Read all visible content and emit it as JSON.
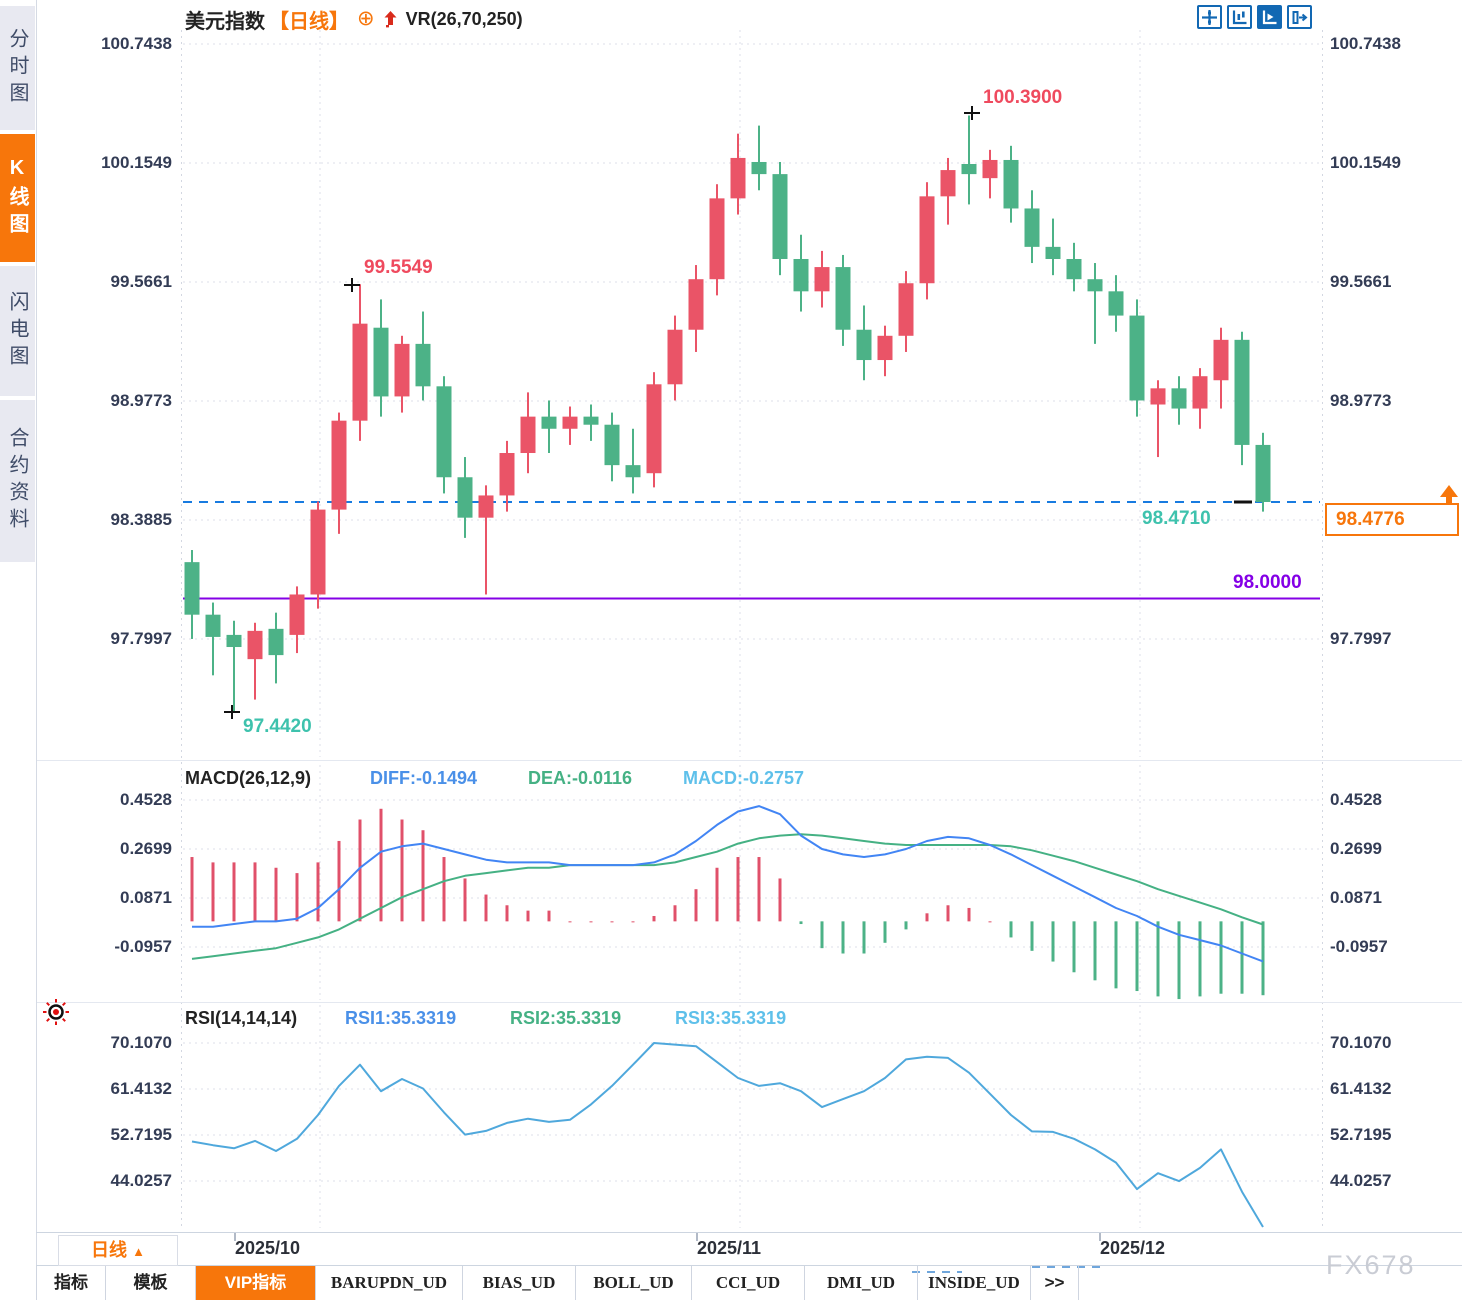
{
  "app": {
    "watermark": "FX678"
  },
  "sidebar": {
    "tabs": [
      {
        "label": "分时图",
        "active": false
      },
      {
        "label": "K线图",
        "active": true
      },
      {
        "label": "闪电图",
        "active": false
      },
      {
        "label": "合约资料",
        "active": false
      }
    ]
  },
  "header": {
    "symbol": "美元指数",
    "period": "【日线】",
    "add_icon": "circle-plus-icon",
    "trend_icon": "red-up-arrow-icon",
    "indicator": "VR(26,70,250)"
  },
  "toolbar": {
    "buttons": [
      {
        "name": "pan-crosshair",
        "active": false
      },
      {
        "name": "axis-range",
        "active": false
      },
      {
        "name": "auto-scale",
        "active": true
      },
      {
        "name": "go-to-latest",
        "active": false
      }
    ]
  },
  "price_axis": {
    "labels": [
      "100.7438",
      "100.1549",
      "99.5661",
      "98.9773",
      "98.3885",
      "97.7997"
    ],
    "values": [
      100.7438,
      100.1549,
      99.5661,
      98.9773,
      98.3885,
      97.7997
    ]
  },
  "macd_axis": {
    "labels": [
      "0.4528",
      "0.2699",
      "0.0871",
      "-0.0957"
    ],
    "values": [
      0.4528,
      0.2699,
      0.0871,
      -0.0957
    ]
  },
  "rsi_axis": {
    "labels": [
      "70.1070",
      "61.4132",
      "52.7195",
      "44.0257"
    ],
    "values": [
      70.107,
      61.4132,
      52.7195,
      44.0257
    ]
  },
  "annotations": {
    "swing_high_1": "99.5549",
    "swing_high_2": "100.3900",
    "swing_low": "97.4420",
    "last_price": "98.4710",
    "current_price": "98.4776",
    "support_line": "98.0000"
  },
  "macd_header": {
    "title": "MACD(26,12,9)",
    "diff": "DIFF:-0.1494",
    "dea": "DEA:-0.0116",
    "macd": "MACD:-0.2757"
  },
  "rsi_header": {
    "title": "RSI(14,14,14)",
    "rsi1": "RSI1:35.3319",
    "rsi2": "RSI2:35.3319",
    "rsi3": "RSI3:35.3319"
  },
  "x_axis": {
    "labels": [
      "2025/10",
      "2025/11",
      "2025/12"
    ]
  },
  "period_selector": {
    "label": "日线",
    "arrow": "▲"
  },
  "bottom_tabs": [
    {
      "label": "指标",
      "active": false
    },
    {
      "label": "模板",
      "active": false
    },
    {
      "label": "VIP指标",
      "active": true
    },
    {
      "label": "BARUPDN_UD",
      "active": false
    },
    {
      "label": "BIAS_UD",
      "active": false
    },
    {
      "label": "BOLL_UD",
      "active": false
    },
    {
      "label": "CCI_UD",
      "active": false
    },
    {
      "label": "DMI_UD",
      "active": false
    },
    {
      "label": "INSIDE_UD",
      "active": false
    },
    {
      "label": ">>",
      "active": false
    }
  ],
  "colors": {
    "up": "#ea5467",
    "down": "#4cb287",
    "hist_up": "#e0506a",
    "hist_down": "#4cb287",
    "diff_line": "#4285f4",
    "dea_line": "#45b184",
    "rsi_line": "#4fa8dc",
    "dashed_price_line": "#187be0",
    "support_line": "#8400e6",
    "accent_orange": "#f7760b",
    "toolbar_blue": "#1268b3",
    "grid": "#dcdfe8"
  },
  "chart_data": {
    "type": "candlestick",
    "title": "美元指数 日线 (US Dollar Index, Daily)",
    "panels": [
      "price",
      "MACD(26,12,9)",
      "RSI(14,14,14)"
    ],
    "legend_position": "top-left",
    "grid": true,
    "x_months": [
      "2025/10",
      "2025/11",
      "2025/12"
    ],
    "price": {
      "ylim": [
        97.3,
        100.85
      ],
      "up_color_convention": "red=up, green=down (CN)",
      "support_level": 98.0,
      "current_price": 98.4776,
      "last_price_label": 98.471,
      "high_marker": 100.39,
      "low_marker": 97.442,
      "swing_high_1": 99.5549,
      "ohlc": [
        [
          98.18,
          98.24,
          97.8,
          97.92
        ],
        [
          97.92,
          97.98,
          97.62,
          97.81
        ],
        [
          97.82,
          97.89,
          97.442,
          97.76
        ],
        [
          97.7,
          97.88,
          97.5,
          97.84
        ],
        [
          97.85,
          97.93,
          97.58,
          97.72
        ],
        [
          97.82,
          98.06,
          97.73,
          98.02
        ],
        [
          98.02,
          98.48,
          97.95,
          98.44
        ],
        [
          98.44,
          98.92,
          98.32,
          98.88
        ],
        [
          98.88,
          99.5549,
          98.78,
          99.36
        ],
        [
          99.34,
          99.48,
          98.9,
          99.0
        ],
        [
          99.0,
          99.3,
          98.92,
          99.26
        ],
        [
          99.26,
          99.42,
          98.98,
          99.05
        ],
        [
          99.05,
          99.1,
          98.52,
          98.6
        ],
        [
          98.6,
          98.7,
          98.3,
          98.4
        ],
        [
          98.4,
          98.56,
          98.02,
          98.51
        ],
        [
          98.51,
          98.78,
          98.43,
          98.72
        ],
        [
          98.72,
          99.02,
          98.62,
          98.9
        ],
        [
          98.9,
          98.98,
          98.72,
          98.84
        ],
        [
          98.84,
          98.95,
          98.76,
          98.9
        ],
        [
          98.9,
          98.96,
          98.78,
          98.86
        ],
        [
          98.86,
          98.92,
          98.58,
          98.66
        ],
        [
          98.66,
          98.84,
          98.52,
          98.6
        ],
        [
          98.62,
          99.12,
          98.55,
          99.06
        ],
        [
          99.06,
          99.4,
          98.98,
          99.33
        ],
        [
          99.33,
          99.65,
          99.22,
          99.58
        ],
        [
          99.58,
          100.05,
          99.5,
          99.98
        ],
        [
          99.98,
          100.3,
          99.9,
          100.18
        ],
        [
          100.16,
          100.34,
          100.02,
          100.1
        ],
        [
          100.1,
          100.16,
          99.6,
          99.68
        ],
        [
          99.68,
          99.8,
          99.42,
          99.52
        ],
        [
          99.52,
          99.72,
          99.44,
          99.64
        ],
        [
          99.64,
          99.7,
          99.25,
          99.33
        ],
        [
          99.33,
          99.45,
          99.08,
          99.18
        ],
        [
          99.18,
          99.35,
          99.1,
          99.3
        ],
        [
          99.3,
          99.62,
          99.22,
          99.56
        ],
        [
          99.56,
          100.06,
          99.48,
          99.99
        ],
        [
          99.99,
          100.18,
          99.85,
          100.12
        ],
        [
          100.15,
          100.39,
          99.95,
          100.1
        ],
        [
          100.08,
          100.22,
          99.98,
          100.17
        ],
        [
          100.17,
          100.24,
          99.86,
          99.93
        ],
        [
          99.93,
          100.02,
          99.66,
          99.74
        ],
        [
          99.74,
          99.88,
          99.6,
          99.68
        ],
        [
          99.68,
          99.76,
          99.52,
          99.58
        ],
        [
          99.58,
          99.66,
          99.26,
          99.52
        ],
        [
          99.52,
          99.6,
          99.32,
          99.4
        ],
        [
          99.4,
          99.48,
          98.9,
          98.98
        ],
        [
          98.96,
          99.08,
          98.7,
          99.04
        ],
        [
          99.04,
          99.1,
          98.86,
          98.94
        ],
        [
          98.94,
          99.14,
          98.84,
          99.1
        ],
        [
          99.08,
          99.34,
          98.94,
          99.28
        ],
        [
          99.28,
          99.32,
          98.66,
          98.76
        ],
        [
          98.76,
          98.82,
          98.43,
          98.4776
        ]
      ]
    },
    "macd": {
      "ylim": [
        -0.3,
        0.48
      ],
      "histogram_rule": "bar = 2*(diff-dea)",
      "diff_end": -0.1494,
      "dea_end": -0.0116,
      "macd_end": -0.2757,
      "diff": [
        -0.02,
        -0.02,
        -0.01,
        0.0,
        0.0,
        0.01,
        0.05,
        0.12,
        0.2,
        0.26,
        0.28,
        0.29,
        0.27,
        0.25,
        0.23,
        0.22,
        0.22,
        0.22,
        0.21,
        0.21,
        0.21,
        0.21,
        0.22,
        0.25,
        0.3,
        0.36,
        0.41,
        0.43,
        0.4,
        0.32,
        0.27,
        0.25,
        0.24,
        0.25,
        0.27,
        0.3,
        0.315,
        0.31,
        0.285,
        0.25,
        0.21,
        0.17,
        0.13,
        0.09,
        0.05,
        0.02,
        -0.02,
        -0.05,
        -0.07,
        -0.09,
        -0.12,
        -0.1494
      ],
      "dea": [
        -0.14,
        -0.13,
        -0.12,
        -0.11,
        -0.1,
        -0.08,
        -0.06,
        -0.03,
        0.01,
        0.05,
        0.09,
        0.12,
        0.15,
        0.17,
        0.18,
        0.19,
        0.2,
        0.2,
        0.21,
        0.21,
        0.21,
        0.21,
        0.21,
        0.22,
        0.24,
        0.26,
        0.29,
        0.31,
        0.32,
        0.325,
        0.32,
        0.31,
        0.3,
        0.29,
        0.285,
        0.285,
        0.285,
        0.285,
        0.285,
        0.28,
        0.265,
        0.245,
        0.225,
        0.2,
        0.175,
        0.15,
        0.12,
        0.095,
        0.07,
        0.045,
        0.015,
        -0.0116
      ]
    },
    "rsi": {
      "ylim": [
        30,
        75
      ],
      "end": 35.3319,
      "values": [
        51.5,
        50.8,
        50.2,
        51.6,
        49.7,
        52.0,
        56.5,
        62.0,
        66.0,
        61.0,
        63.3,
        61.5,
        57.0,
        52.8,
        53.5,
        55.0,
        55.8,
        55.2,
        55.6,
        58.5,
        62.0,
        66.0,
        70.107,
        69.8,
        69.5,
        66.5,
        63.5,
        62.0,
        62.5,
        61.0,
        58.0,
        59.5,
        61.0,
        63.5,
        67.0,
        67.5,
        67.3,
        64.5,
        60.5,
        56.5,
        53.4,
        53.3,
        52.0,
        50.0,
        47.5,
        42.5,
        45.5,
        44.0,
        46.5,
        50.0,
        42.0,
        35.3319
      ]
    }
  }
}
